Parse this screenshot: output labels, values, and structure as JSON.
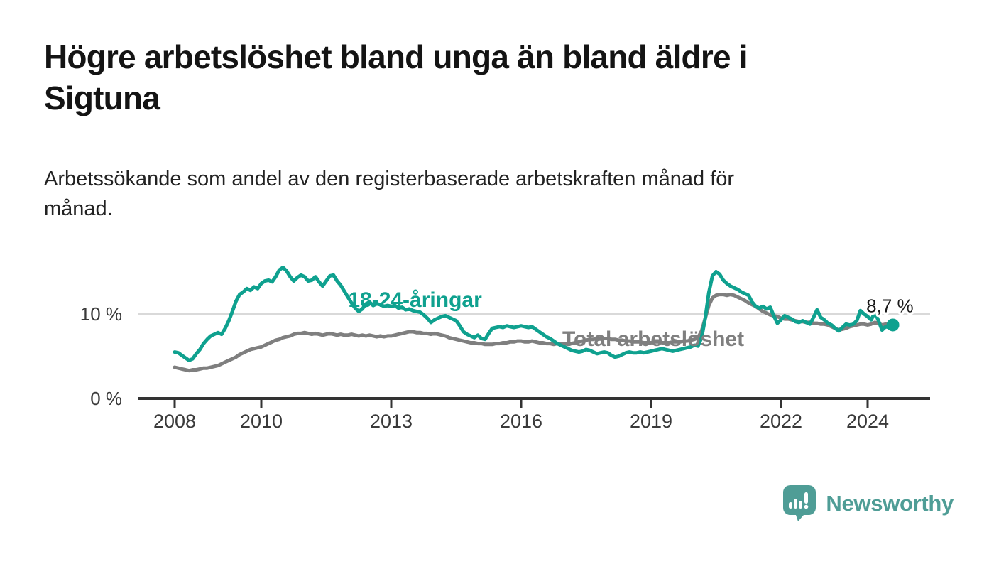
{
  "chart_data": {
    "type": "line",
    "title": "Högre arbetslöshet bland unga än bland äldre i\nSigtuna",
    "subtitle": "Arbetssökande som andel av den registerbaserade arbetskraften månad för\nmånad.",
    "unit": "%",
    "x_axis": {
      "ticks": [
        2008,
        2010,
        2013,
        2016,
        2019,
        2022,
        2024
      ],
      "range": [
        2007.2,
        2025.4
      ],
      "grid": false
    },
    "y_axis": {
      "ticks": [
        {
          "value": 0,
          "label": "0 %"
        },
        {
          "value": 10,
          "label": "10 %"
        }
      ],
      "grid_values": [
        10
      ],
      "range": [
        0,
        16.2
      ]
    },
    "series": [
      {
        "id": "total",
        "name": "Total arbetslöshet",
        "color": "#7f7f7f",
        "label_anchor": {
          "x": 2019.05,
          "y": 7.05
        },
        "start": 2008.0,
        "step_months": 1,
        "values": [
          3.7,
          3.6,
          3.5,
          3.4,
          3.3,
          3.4,
          3.4,
          3.5,
          3.6,
          3.6,
          3.7,
          3.8,
          3.9,
          4.1,
          4.3,
          4.5,
          4.7,
          4.9,
          5.2,
          5.4,
          5.6,
          5.8,
          5.9,
          6.0,
          6.1,
          6.3,
          6.5,
          6.7,
          6.9,
          7.0,
          7.2,
          7.3,
          7.4,
          7.6,
          7.7,
          7.7,
          7.8,
          7.7,
          7.6,
          7.7,
          7.6,
          7.5,
          7.6,
          7.7,
          7.6,
          7.5,
          7.6,
          7.5,
          7.5,
          7.6,
          7.5,
          7.4,
          7.5,
          7.4,
          7.5,
          7.4,
          7.3,
          7.4,
          7.3,
          7.4,
          7.4,
          7.5,
          7.6,
          7.7,
          7.8,
          7.9,
          7.9,
          7.8,
          7.8,
          7.7,
          7.7,
          7.6,
          7.7,
          7.6,
          7.5,
          7.4,
          7.2,
          7.1,
          7.0,
          6.9,
          6.8,
          6.7,
          6.6,
          6.6,
          6.5,
          6.5,
          6.4,
          6.4,
          6.4,
          6.5,
          6.5,
          6.6,
          6.6,
          6.7,
          6.7,
          6.8,
          6.8,
          6.7,
          6.7,
          6.8,
          6.7,
          6.6,
          6.6,
          6.5,
          6.5,
          6.4,
          6.5,
          6.5,
          6.5,
          6.4,
          6.5,
          6.6,
          6.7,
          6.8,
          6.9,
          7.0,
          7.0,
          7.1,
          7.1,
          7.1,
          7.1,
          7.0,
          7.0,
          6.9,
          6.9,
          6.8,
          6.8,
          6.7,
          6.7,
          6.7,
          6.6,
          6.6,
          6.6,
          6.7,
          6.7,
          6.6,
          6.6,
          6.6,
          6.7,
          6.7,
          6.7,
          6.8,
          6.8,
          6.9,
          7.0,
          7.2,
          8.0,
          9.5,
          11.0,
          11.9,
          12.2,
          12.3,
          12.3,
          12.2,
          12.3,
          12.2,
          12.0,
          11.8,
          11.6,
          11.3,
          11.1,
          10.9,
          10.6,
          10.3,
          10.1,
          9.9,
          9.8,
          9.7,
          9.5,
          9.4,
          9.4,
          9.3,
          9.2,
          9.1,
          9.1,
          9.0,
          9.0,
          8.9,
          8.9,
          8.8,
          8.8,
          8.7,
          8.5,
          8.3,
          8.1,
          8.2,
          8.3,
          8.5,
          8.6,
          8.7,
          8.8,
          8.8,
          8.7,
          8.8,
          9.0,
          8.9,
          8.7,
          8.8,
          8.7,
          8.7
        ]
      },
      {
        "id": "youth",
        "name": "18-24-åringar",
        "color": "#0fa18f",
        "label_anchor": {
          "x": 2013.55,
          "y": 11.7
        },
        "start": 2008.0,
        "step_months": 1,
        "values": [
          5.5,
          5.4,
          5.1,
          4.8,
          4.5,
          4.7,
          5.3,
          5.8,
          6.5,
          7.0,
          7.4,
          7.6,
          7.8,
          7.6,
          8.3,
          9.2,
          10.3,
          11.5,
          12.3,
          12.6,
          13.0,
          12.8,
          13.2,
          13.0,
          13.6,
          13.9,
          14.0,
          13.8,
          14.4,
          15.2,
          15.5,
          15.1,
          14.4,
          13.9,
          14.3,
          14.6,
          14.4,
          13.9,
          14.0,
          14.4,
          13.8,
          13.3,
          13.9,
          14.5,
          14.6,
          13.9,
          13.4,
          12.7,
          12.0,
          11.3,
          10.7,
          10.3,
          10.6,
          11.2,
          11.4,
          11.0,
          11.2,
          11.1,
          10.9,
          11.0,
          10.9,
          11.0,
          10.7,
          10.8,
          10.5,
          10.6,
          10.4,
          10.3,
          10.2,
          9.9,
          9.5,
          9.0,
          9.3,
          9.5,
          9.7,
          9.8,
          9.6,
          9.4,
          9.2,
          8.6,
          7.9,
          7.6,
          7.4,
          7.2,
          7.5,
          7.1,
          7.0,
          7.7,
          8.3,
          8.4,
          8.5,
          8.4,
          8.6,
          8.5,
          8.4,
          8.5,
          8.6,
          8.5,
          8.4,
          8.5,
          8.2,
          7.9,
          7.6,
          7.3,
          7.1,
          6.8,
          6.5,
          6.3,
          6.1,
          5.9,
          5.7,
          5.6,
          5.5,
          5.6,
          5.8,
          5.7,
          5.5,
          5.3,
          5.4,
          5.5,
          5.4,
          5.1,
          4.9,
          5.0,
          5.2,
          5.4,
          5.5,
          5.4,
          5.4,
          5.5,
          5.4,
          5.5,
          5.6,
          5.7,
          5.8,
          5.9,
          5.8,
          5.7,
          5.6,
          5.7,
          5.8,
          5.9,
          6.0,
          6.1,
          6.3,
          6.2,
          7.2,
          9.5,
          12.5,
          14.5,
          15.0,
          14.7,
          14.0,
          13.6,
          13.3,
          13.1,
          12.9,
          12.6,
          12.4,
          12.2,
          11.4,
          10.9,
          10.7,
          10.9,
          10.6,
          10.8,
          9.8,
          8.9,
          9.3,
          9.8,
          9.6,
          9.4,
          9.1,
          9.0,
          9.2,
          9.0,
          8.8,
          9.6,
          10.5,
          9.6,
          9.3,
          8.9,
          8.7,
          8.3,
          8.0,
          8.4,
          8.8,
          8.7,
          8.8,
          9.2,
          10.4,
          10.0,
          9.7,
          9.3,
          10.2,
          9.2,
          8.1,
          8.5,
          8.4,
          8.7
        ]
      }
    ],
    "annotation": {
      "label": "8,7 %",
      "anchor": {
        "x": 2023.97,
        "y": 10.8
      }
    },
    "end_dot": {
      "x": 2024.583,
      "y": 8.7,
      "color": "#0fa18f"
    },
    "colors": {
      "grid": "#d9d9d9",
      "axis": "#333333",
      "tick_text": "#3a3a3a",
      "annotation_text": "#1a1a1a"
    }
  },
  "footer": {
    "brand": "Newsworthy",
    "brand_color": "#4f9d96"
  }
}
